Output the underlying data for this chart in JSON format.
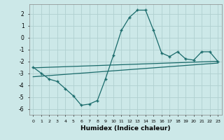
{
  "title": "",
  "xlabel": "Humidex (Indice chaleur)",
  "bg_color": "#cce8e8",
  "grid_color": "#b0d0d0",
  "line_color": "#1a6b6b",
  "x": [
    0,
    1,
    2,
    3,
    4,
    5,
    6,
    7,
    8,
    9,
    10,
    11,
    12,
    13,
    14,
    15,
    16,
    17,
    18,
    19,
    20,
    21,
    22,
    23
  ],
  "y_main": [
    -2.5,
    -3.0,
    -3.5,
    -3.7,
    -4.3,
    -4.9,
    -5.7,
    -5.6,
    -5.3,
    -3.5,
    -1.5,
    0.6,
    1.7,
    2.3,
    2.3,
    0.6,
    -1.3,
    -1.6,
    -1.2,
    -1.8,
    -1.9,
    -1.2,
    -1.2,
    -2.0
  ],
  "upper_line_y": [
    -2.55,
    -2.0
  ],
  "lower_line_y": [
    -3.3,
    -2.15
  ],
  "ylim": [
    -6.5,
    2.8
  ],
  "xlim": [
    -0.5,
    23.5
  ],
  "yticks": [
    2,
    1,
    0,
    -1,
    -2,
    -3,
    -4,
    -5,
    -6
  ],
  "xticks": [
    0,
    1,
    2,
    3,
    4,
    5,
    6,
    7,
    8,
    9,
    10,
    11,
    12,
    13,
    14,
    15,
    16,
    17,
    18,
    19,
    20,
    21,
    22,
    23
  ]
}
